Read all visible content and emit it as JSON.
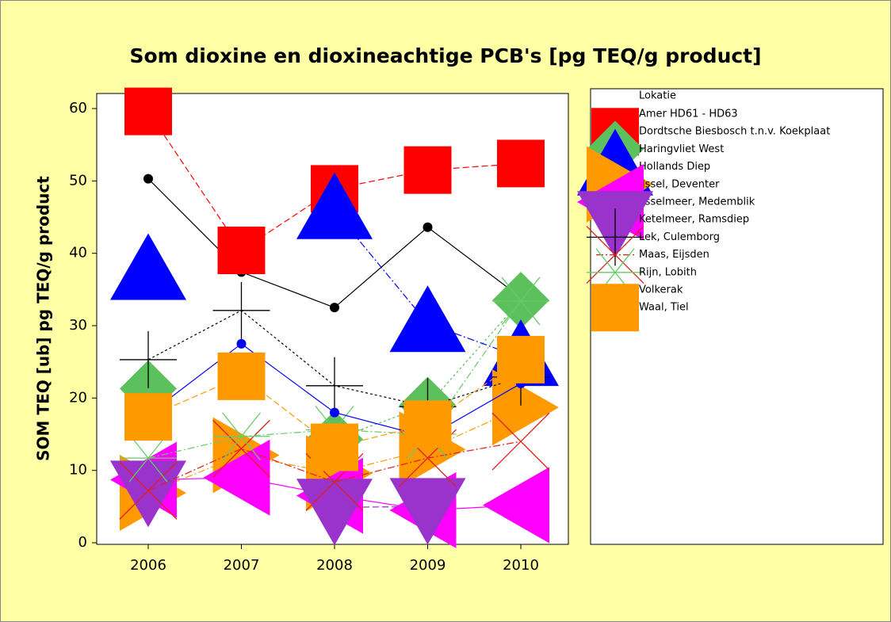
{
  "chart_data": {
    "type": "line",
    "title": "Som dioxine en dioxineachtige PCB's [pg TEQ/g product]",
    "y_label": "SOM TEQ [ub] pg TEQ/g product",
    "legend_title": "Lokatie",
    "categories": [
      "2006",
      "2007",
      "2008",
      "2009",
      "2010"
    ],
    "ylim": [
      0,
      60
    ],
    "yticks": [
      0,
      10,
      20,
      30,
      40,
      50,
      60
    ],
    "legend": "right",
    "series": [
      {
        "name": "Amer HD61 - HD63",
        "color": "#000000",
        "marker": "circle",
        "dash": "solid",
        "values": [
          50.3,
          37.4,
          32.5,
          43.6,
          33.9
        ]
      },
      {
        "name": "Dordtsche Biesbosch t.n.v. Koekplaat",
        "color": "#ff0000",
        "marker": "square",
        "dash": "dashed",
        "values": [
          59.6,
          40.4,
          48.9,
          51.5,
          52.4
        ]
      },
      {
        "name": "Haringvliet West",
        "color": "#5cc05c",
        "marker": "diamond",
        "dash": "dotted",
        "values": [
          21.3,
          null,
          14.3,
          19.0,
          33.5
        ]
      },
      {
        "name": "Hollands Diep",
        "color": "#0000ff",
        "marker": "triangle-up",
        "dash": "dashdot",
        "values": [
          37.5,
          null,
          45.9,
          30.3,
          25.6
        ]
      },
      {
        "name": "IJssel, Deventer",
        "color": "#ff9900",
        "marker": "triangle-right",
        "dash": "dashdot",
        "values": [
          6.9,
          12.1,
          9.6,
          12.9,
          18.7
        ]
      },
      {
        "name": "IJsselmeer, Medemblik",
        "color": "#ff00ff",
        "marker": "triangle-left",
        "dash": "solid",
        "values": [
          8.7,
          9.0,
          6.5,
          4.5,
          5.2
        ]
      },
      {
        "name": "Ketelmeer, Ramsdiep",
        "color": "#9933cc",
        "marker": "triangle-down",
        "dash": "dashed",
        "values": [
          7.4,
          null,
          4.9,
          5.0,
          null
        ]
      },
      {
        "name": "Lek, Culemborg",
        "color": "#000000",
        "marker": "plus",
        "dash": "dotted",
        "values": [
          25.3,
          32.1,
          21.7,
          18.8,
          22.9
        ]
      },
      {
        "name": "Maas, Eijsden",
        "color": "#e02020",
        "marker": "cross",
        "dash": "dashdot",
        "values": [
          7.2,
          13.0,
          8.4,
          11.7,
          14.0
        ]
      },
      {
        "name": "Rijn, Lobith",
        "color": "#66cc66",
        "marker": "asterisk",
        "dash": "dashdot",
        "values": [
          11.7,
          14.7,
          15.6,
          15.0,
          33.4
        ]
      },
      {
        "name": "Volkerak",
        "color": "#0000ff",
        "marker": "circle",
        "dash": "solid",
        "values": [
          17.7,
          27.5,
          18.0,
          14.6,
          22.0
        ]
      },
      {
        "name": "Waal, Tiel",
        "color": "#ff9900",
        "marker": "square",
        "dash": "dashed",
        "values": [
          17.4,
          23.0,
          13.2,
          16.4,
          25.3
        ]
      }
    ]
  }
}
